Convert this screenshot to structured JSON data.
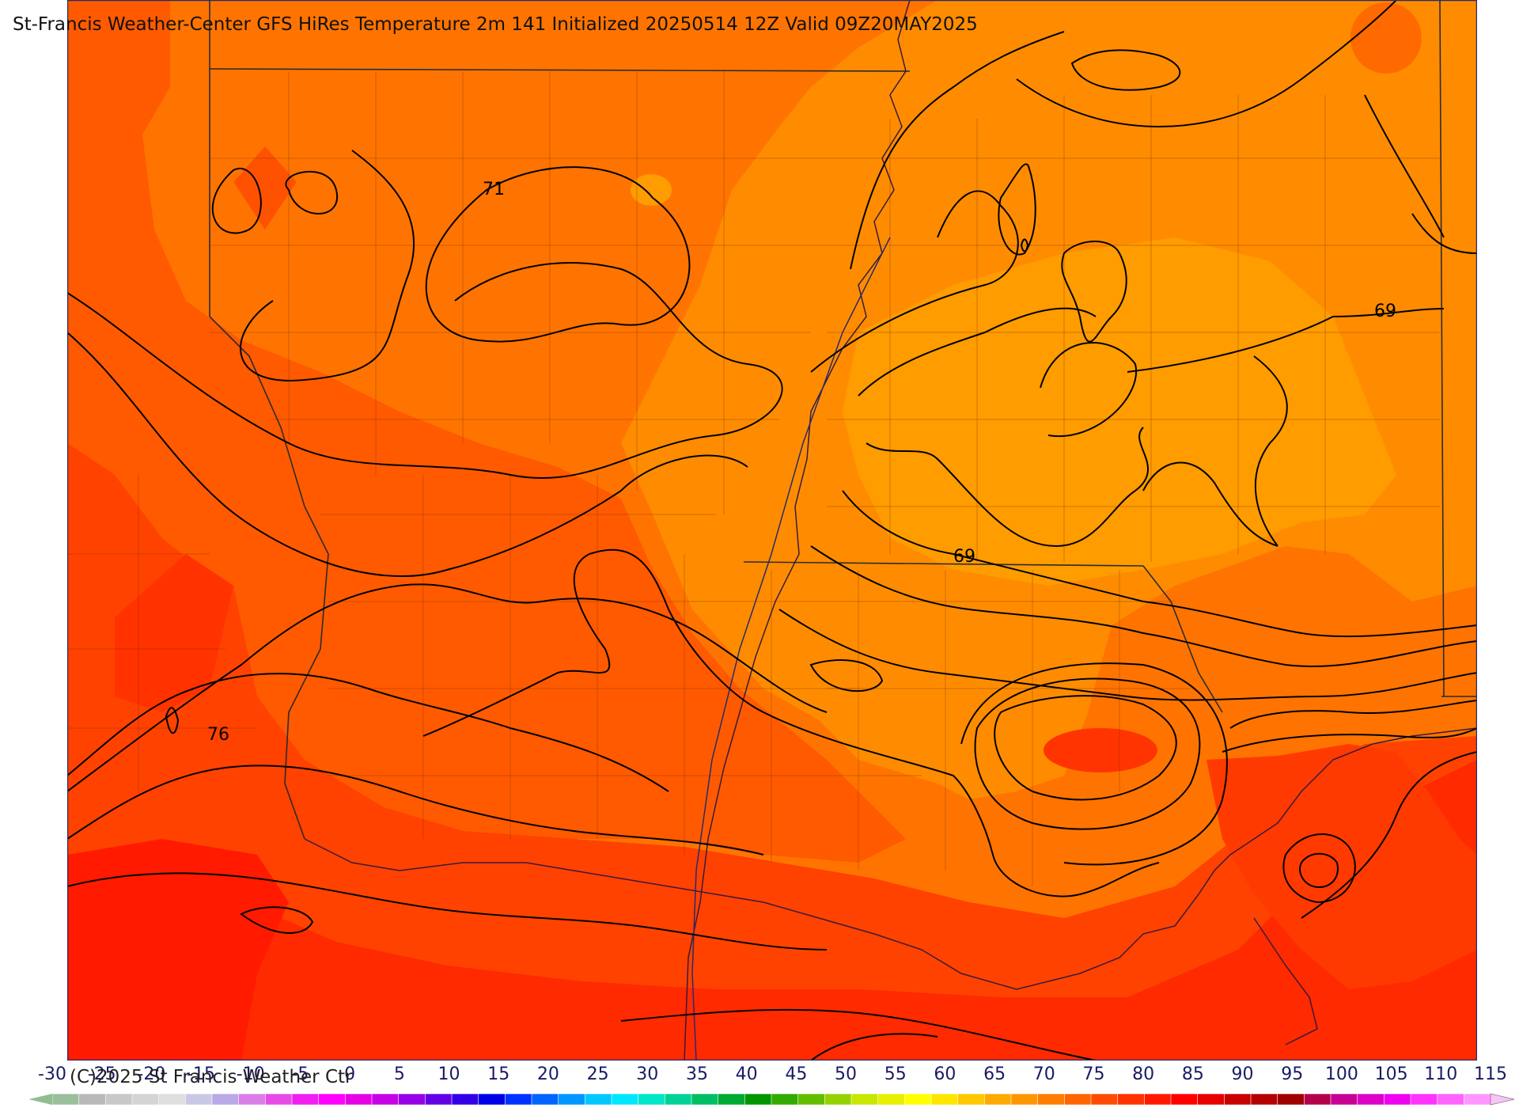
{
  "title": "St-Francis Weather-Center GFS HiRes Temperature 2m  141 Initialized 20250514 12Z Valid 09Z20MAY2025",
  "copyright": "(C)2025 St Francis Weather Ctr",
  "contour_labels": [
    "71",
    "69",
    "76",
    "69"
  ],
  "colorbar": {
    "labels": [
      "-30",
      "-25",
      "-20",
      "-15",
      "-10",
      "-5",
      "0",
      "5",
      "10",
      "15",
      "20",
      "25",
      "30",
      "35",
      "40",
      "45",
      "50",
      "55",
      "60",
      "65",
      "70",
      "75",
      "80",
      "85",
      "90",
      "95",
      "100",
      "105",
      "110",
      "115"
    ],
    "colors": [
      "#9bbf9b",
      "#b9b9b9",
      "#c8c8c8",
      "#d4d4d4",
      "#dedede",
      "#c9c9e6",
      "#b9a9e6",
      "#d97ee6",
      "#e64be6",
      "#f01ef0",
      "#ff00ff",
      "#e600e6",
      "#c800e6",
      "#9600e6",
      "#6400e6",
      "#3200e6",
      "#0000e6",
      "#0032ff",
      "#0064ff",
      "#0096ff",
      "#00c8ff",
      "#00e6ff",
      "#00e6c8",
      "#00d296",
      "#00be64",
      "#00aa32",
      "#009600",
      "#32aa00",
      "#64be00",
      "#96d200",
      "#c8e600",
      "#e6f000",
      "#ffff00",
      "#ffe600",
      "#ffc800",
      "#ffaa00",
      "#ff9600",
      "#ff7d00",
      "#ff6400",
      "#ff4b00",
      "#ff3200",
      "#ff1900",
      "#ff0000",
      "#e60000",
      "#c80000",
      "#b40000",
      "#a00000",
      "#b4004b",
      "#c80096",
      "#dc00c8",
      "#f000f0",
      "#ff32ff",
      "#ff64ff",
      "#ff96ff"
    ],
    "arrow_left_color": "#8fbf8f",
    "arrow_right_color": "#f2c8f2"
  },
  "palette": {
    "t66": "#ff9c00",
    "t69": "#ff8c00",
    "t72": "#ff7200",
    "t75": "#ff5a00",
    "t78": "#ff4200",
    "t81": "#ff2a00",
    "t84": "#ff1000"
  }
}
